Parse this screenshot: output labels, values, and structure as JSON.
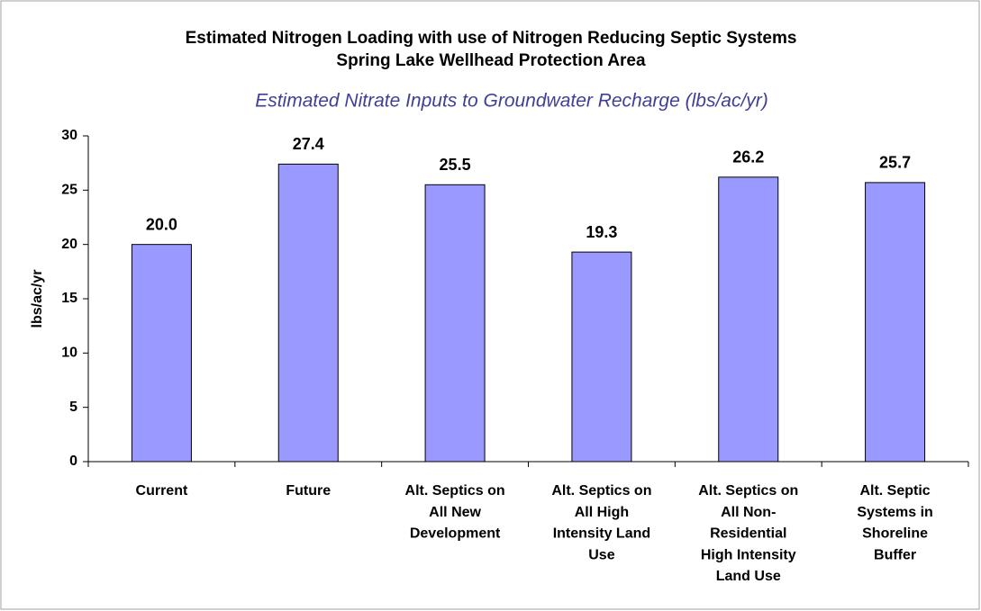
{
  "chart_data": {
    "type": "bar",
    "title": [
      "Estimated Nitrogen Loading with use of Nitrogen Reducing Septic Systems",
      "Spring Lake Wellhead Protection Area"
    ],
    "subtitle": "Estimated Nitrate Inputs to Groundwater Recharge (lbs/ac/yr)",
    "y_label": "lbs/ac/yr",
    "categories": [
      [
        "Current"
      ],
      [
        "Future"
      ],
      [
        "Alt. Septics on",
        "All New",
        "Development"
      ],
      [
        "Alt. Septics on",
        "All High",
        "Intensity Land",
        "Use"
      ],
      [
        "Alt. Septics on",
        "All Non-",
        "Residential",
        "High Intensity",
        "Land Use"
      ],
      [
        "Alt. Septic",
        "Systems in",
        "Shoreline",
        "Buffer"
      ]
    ],
    "values": [
      20.0,
      27.4,
      25.5,
      19.3,
      26.2,
      25.7
    ],
    "value_labels": [
      "20.0",
      "27.4",
      "25.5",
      "19.3",
      "26.2",
      "25.7"
    ],
    "color": "#9999ff",
    "ylim": [
      0,
      30
    ],
    "yticks": [
      0,
      5,
      10,
      15,
      20,
      25,
      30
    ],
    "grid": false
  }
}
